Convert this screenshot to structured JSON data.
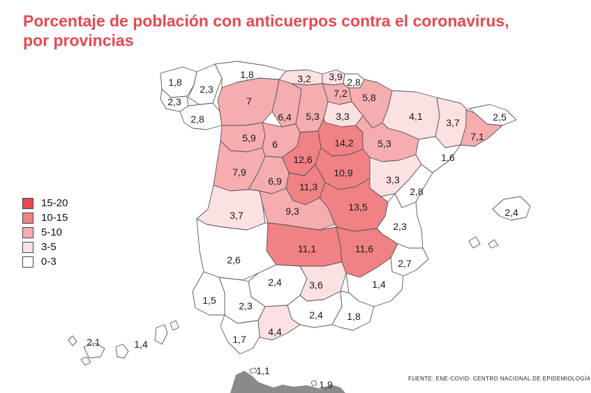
{
  "title_lines": [
    "Porcentaje de población con anticuerpos contra el coronavirus,",
    "por provincias"
  ],
  "legend": [
    {
      "label": "15-20",
      "color": "#e8484f"
    },
    {
      "label": "10-15",
      "color": "#f08185"
    },
    {
      "label": "5-10",
      "color": "#f5adb0"
    },
    {
      "label": "3-5",
      "color": "#fbe1e2"
    },
    {
      "label": "0-3",
      "color": "#ffffff"
    }
  ],
  "source": "Fuente: ENE-COVID. Centro Nacional de Epidemiología",
  "provinces": [
    {
      "id": "lugo-coruna-n",
      "value": "1,8"
    },
    {
      "id": "lugo",
      "value": "2,3"
    },
    {
      "id": "coruna-s",
      "value": "2,3"
    },
    {
      "id": "pontevedra-ourense",
      "value": "2,8"
    },
    {
      "id": "asturias",
      "value": "1,8"
    },
    {
      "id": "cantabria",
      "value": "3,2"
    },
    {
      "id": "bizkaia",
      "value": "3,9"
    },
    {
      "id": "gipuzkoa",
      "value": "2,8"
    },
    {
      "id": "alava",
      "value": "7,2"
    },
    {
      "id": "navarra",
      "value": "5,8"
    },
    {
      "id": "leon",
      "value": "7"
    },
    {
      "id": "palencia",
      "value": "6,4"
    },
    {
      "id": "burgos",
      "value": "5,3"
    },
    {
      "id": "la-rioja",
      "value": "3,3"
    },
    {
      "id": "huesca",
      "value": "4,1"
    },
    {
      "id": "lleida",
      "value": "3,7"
    },
    {
      "id": "girona",
      "value": "2,5"
    },
    {
      "id": "barcelona",
      "value": "7,1"
    },
    {
      "id": "zamora",
      "value": "5,9"
    },
    {
      "id": "valladolid",
      "value": "6"
    },
    {
      "id": "soria",
      "value": "14,2"
    },
    {
      "id": "zaragoza",
      "value": "5,3"
    },
    {
      "id": "tarragona",
      "value": "1,6"
    },
    {
      "id": "salamanca",
      "value": "7,9"
    },
    {
      "id": "segovia",
      "value": "12,6"
    },
    {
      "id": "guadalajara",
      "value": "10,9"
    },
    {
      "id": "teruel",
      "value": "3,3"
    },
    {
      "id": "avila",
      "value": "6,9"
    },
    {
      "id": "madrid",
      "value": "11,3"
    },
    {
      "id": "castellon",
      "value": "2,8"
    },
    {
      "id": "caceres",
      "value": "3,7"
    },
    {
      "id": "toledo",
      "value": "9,3"
    },
    {
      "id": "cuenca",
      "value": "13,5"
    },
    {
      "id": "valencia",
      "value": "2,3"
    },
    {
      "id": "ciudad-real",
      "value": "11,1"
    },
    {
      "id": "albacete",
      "value": "11,6"
    },
    {
      "id": "badajoz",
      "value": "2,6"
    },
    {
      "id": "alicante",
      "value": "2,7"
    },
    {
      "id": "cordoba",
      "value": "2,4"
    },
    {
      "id": "jaen",
      "value": "3,6"
    },
    {
      "id": "murcia",
      "value": "1,4"
    },
    {
      "id": "huelva",
      "value": "1,5"
    },
    {
      "id": "sevilla",
      "value": "2,3"
    },
    {
      "id": "granada",
      "value": "2,4"
    },
    {
      "id": "almeria",
      "value": "1,8"
    },
    {
      "id": "malaga",
      "value": "4,4"
    },
    {
      "id": "cadiz",
      "value": "1,7"
    },
    {
      "id": "baleares",
      "value": "2,4"
    },
    {
      "id": "santa-cruz-tenerife",
      "value": "2,1"
    },
    {
      "id": "las-palmas",
      "value": "1,4"
    },
    {
      "id": "ceuta",
      "value": "1,1"
    },
    {
      "id": "melilla",
      "value": "1,9"
    }
  ]
}
